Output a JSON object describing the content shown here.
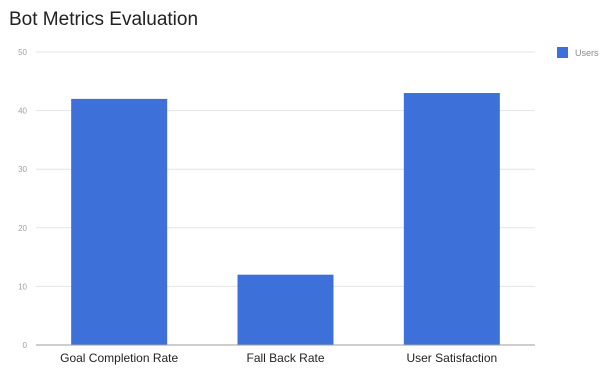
{
  "chart_data": {
    "type": "bar",
    "title": "Bot Metrics Evaluation",
    "categories": [
      "Goal Completion Rate",
      "Fall Back Rate",
      "User Satisfaction"
    ],
    "series": [
      {
        "name": "Users",
        "values": [
          42,
          12,
          43
        ]
      }
    ],
    "xlabel": "",
    "ylabel": "",
    "ylim": [
      0,
      50
    ],
    "yticks": [
      0,
      10,
      20,
      30,
      40,
      50
    ],
    "grid": true,
    "legend": "right",
    "colors": {
      "bar": "#3d71d9",
      "grid": "#e4e4e4",
      "axis": "#9e9e9e"
    }
  }
}
